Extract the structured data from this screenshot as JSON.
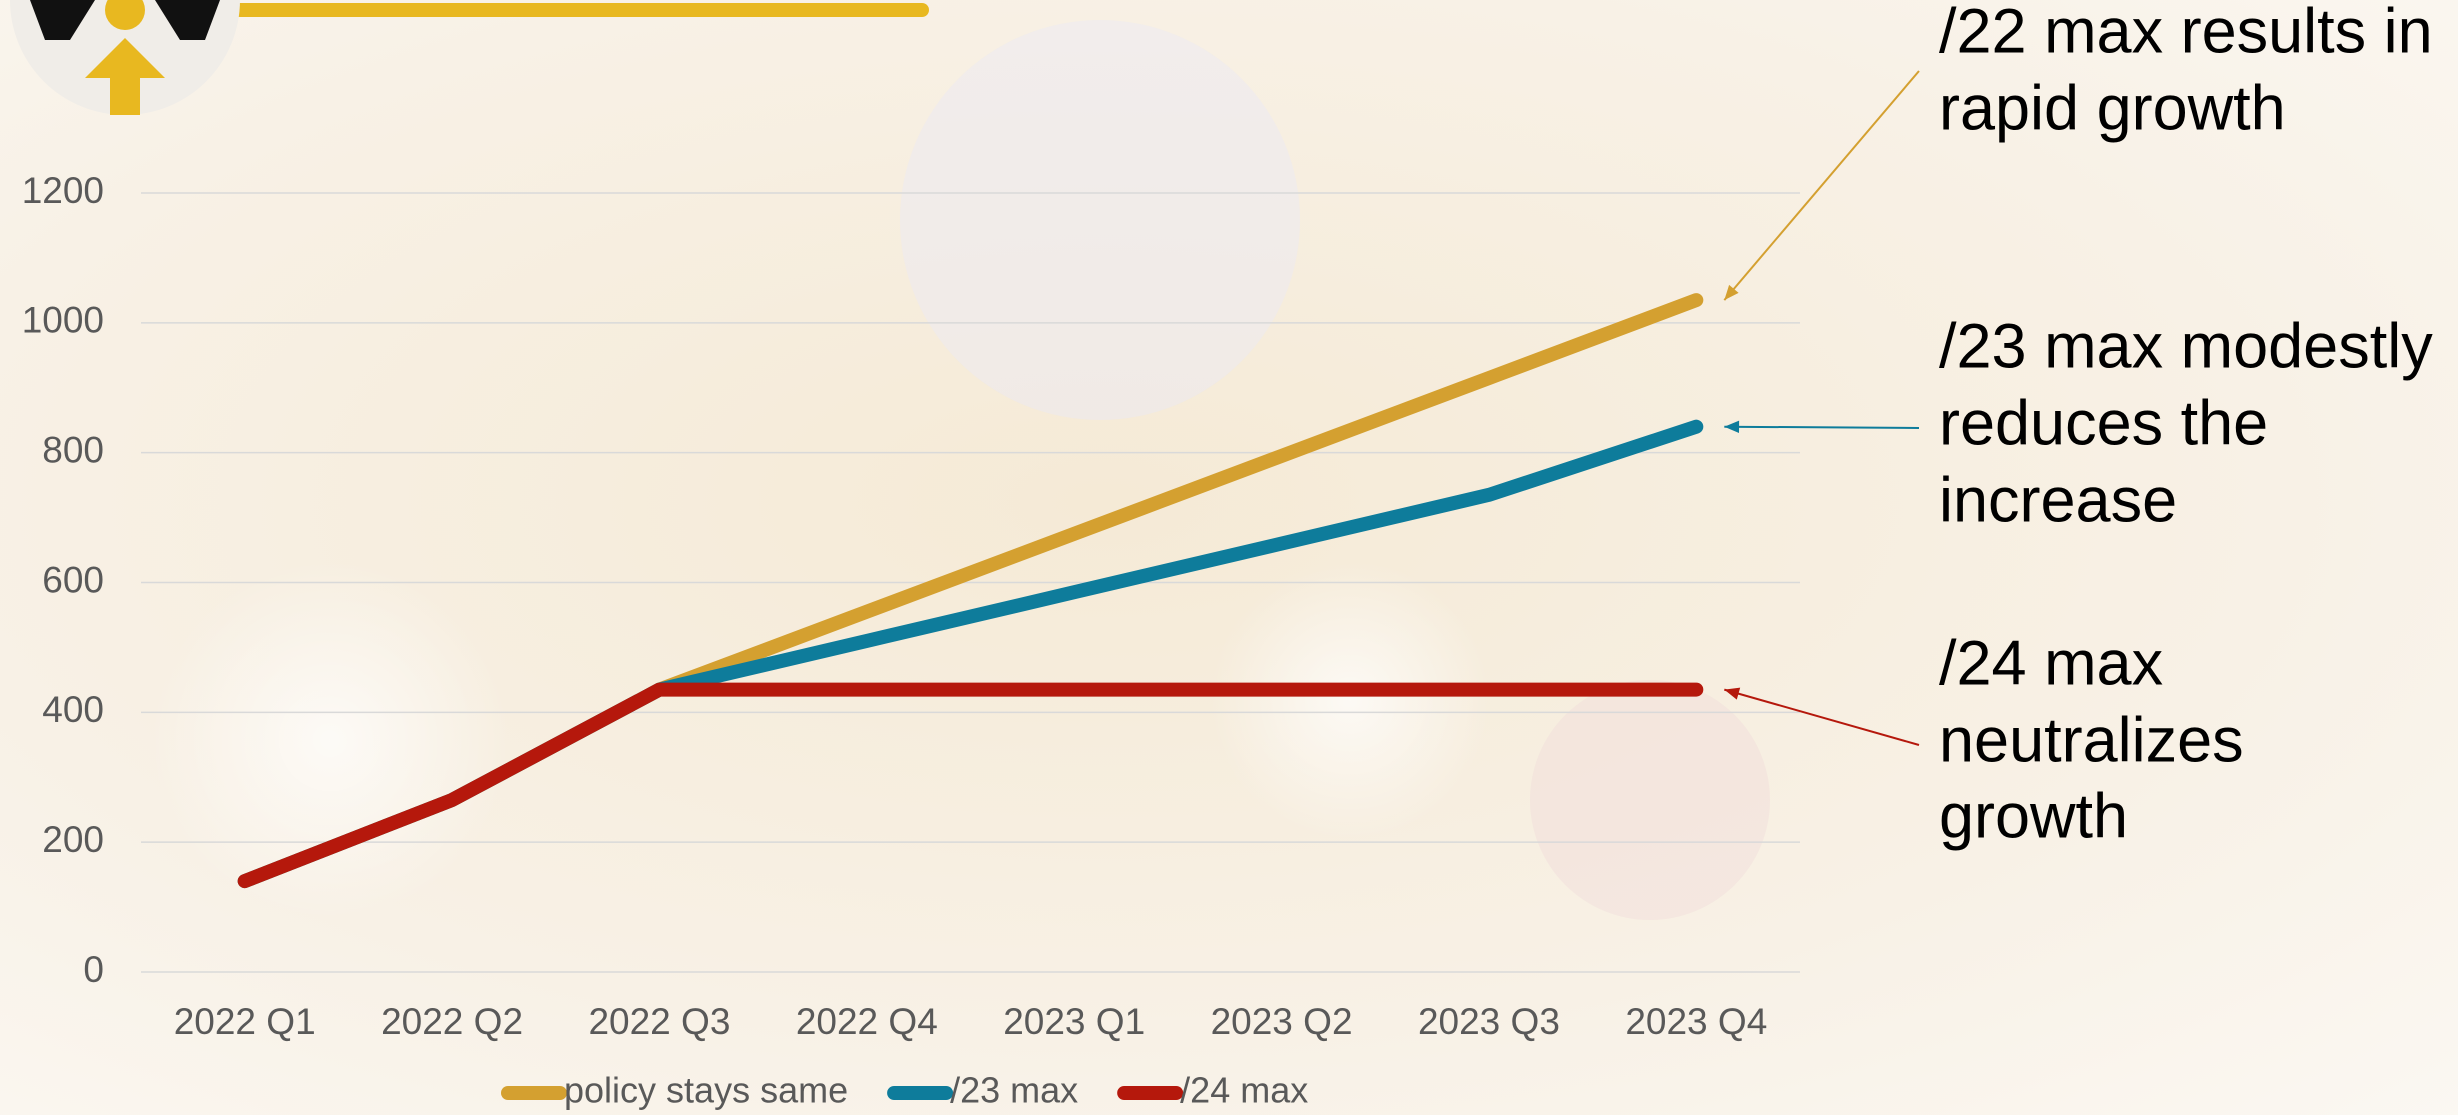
{
  "chart_data": {
    "type": "line",
    "categories": [
      "2022 Q1",
      "2022 Q2",
      "2022 Q3",
      "2022 Q4",
      "2023 Q1",
      "2023 Q2",
      "2023 Q3",
      "2023 Q4"
    ],
    "series": [
      {
        "name": "policy stays same",
        "color": "#d4a030",
        "values": [
          140,
          265,
          435,
          555,
          675,
          795,
          915,
          1035
        ]
      },
      {
        "name": "/23 max",
        "color": "#0e7c9b",
        "values": [
          140,
          265,
          435,
          510,
          585,
          660,
          735,
          840
        ]
      },
      {
        "name": "/24 max",
        "color": "#b5180c",
        "values": [
          140,
          265,
          435,
          435,
          435,
          435,
          435,
          435
        ]
      }
    ],
    "ylim": [
      0,
      1200
    ],
    "yticks": [
      0,
      200,
      400,
      600,
      800,
      1000,
      1200
    ],
    "grid": true,
    "legend": "bottom",
    "annotations": [
      [
        "/22 max results in",
        "rapid growth"
      ],
      [
        "/23 max modestly",
        "reduces the",
        "increase"
      ],
      [
        "/24 max",
        "neutralizes",
        "growth"
      ]
    ]
  }
}
